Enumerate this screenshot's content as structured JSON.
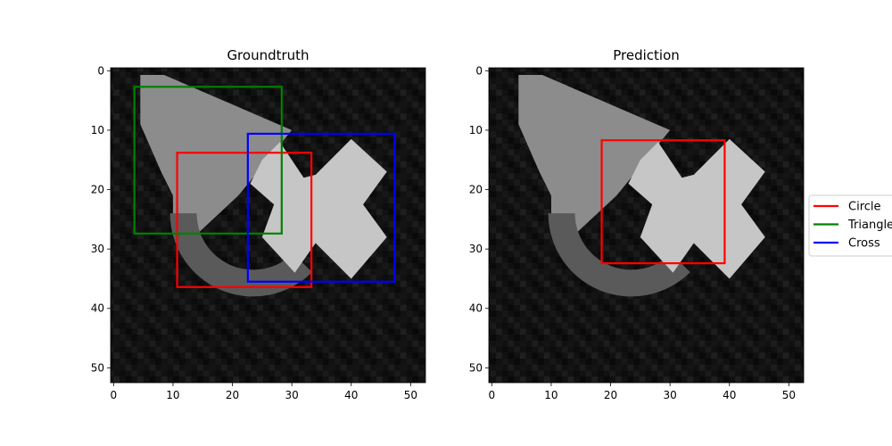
{
  "chart_data": [
    {
      "type": "image",
      "title": "Groundtruth",
      "xlim": [
        -0.5,
        52.5
      ],
      "ylim": [
        52.5,
        -0.5
      ],
      "xticks": [
        0,
        10,
        20,
        30,
        40,
        50
      ],
      "yticks": [
        0,
        10,
        20,
        30,
        40,
        50
      ],
      "image": {
        "background": "#111111",
        "shapes": [
          {
            "shape": "triangle",
            "gray": "#8c8c8c"
          },
          {
            "shape": "circle",
            "gray": "#5a5a5a"
          },
          {
            "shape": "cross",
            "gray": "#c6c6c6"
          }
        ]
      },
      "boxes": [
        {
          "label": "Circle",
          "color": "#ff0000",
          "x0": 10.7,
          "y0": 13.8,
          "x1": 33.3,
          "y1": 36.4
        },
        {
          "label": "Triangle",
          "color": "#008000",
          "x0": 3.5,
          "y0": 2.7,
          "x1": 28.3,
          "y1": 27.4
        },
        {
          "label": "Cross",
          "color": "#0000ff",
          "x0": 22.6,
          "y0": 10.6,
          "x1": 47.3,
          "y1": 35.5
        }
      ]
    },
    {
      "type": "image",
      "title": "Prediction",
      "xlim": [
        -0.5,
        52.5
      ],
      "ylim": [
        52.5,
        -0.5
      ],
      "xticks": [
        0,
        10,
        20,
        30,
        40,
        50
      ],
      "yticks": [
        0,
        10,
        20,
        30,
        40,
        50
      ],
      "image": {
        "background": "#111111",
        "shapes": [
          {
            "shape": "triangle",
            "gray": "#8c8c8c"
          },
          {
            "shape": "circle",
            "gray": "#5a5a5a"
          },
          {
            "shape": "cross",
            "gray": "#c6c6c6"
          }
        ]
      },
      "boxes": [
        {
          "label": "Circle",
          "color": "#ff0000",
          "x0": 18.5,
          "y0": 11.7,
          "x1": 39.2,
          "y1": 32.4
        }
      ]
    }
  ],
  "legend": {
    "placement": "right",
    "entries": [
      {
        "label": "Circle",
        "color": "#ff0000"
      },
      {
        "label": "Triangle",
        "color": "#008000"
      },
      {
        "label": "Cross",
        "color": "#0000ff"
      }
    ]
  }
}
